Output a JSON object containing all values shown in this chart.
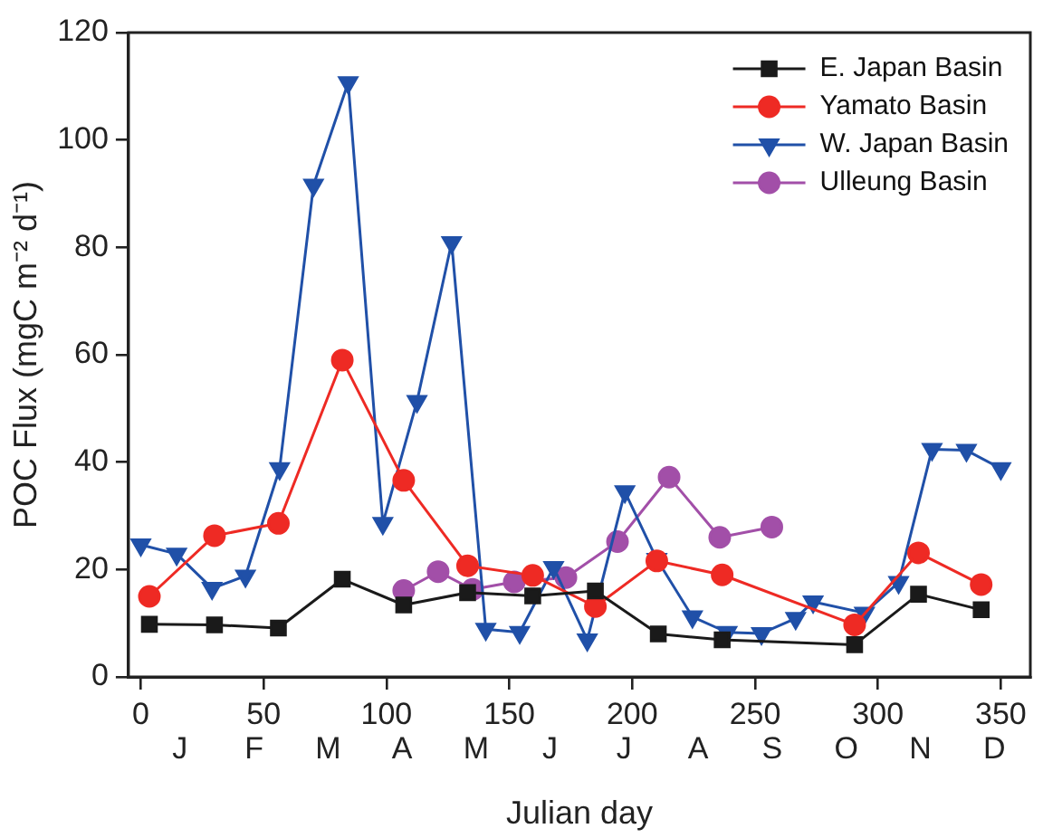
{
  "chart_data": {
    "type": "line",
    "xlabel": "Julian day",
    "ylabel": "POC Flux (mgC m⁻² d⁻¹)",
    "xlim": [
      -5,
      362
    ],
    "xticks": [
      0,
      50,
      100,
      150,
      200,
      250,
      300,
      350
    ],
    "annotations": [
      "J",
      "F",
      "M",
      "A",
      "M",
      "J",
      "J",
      "A",
      "S",
      "O",
      "N",
      "D"
    ],
    "ylim": [
      0,
      120
    ],
    "yticks": [
      0,
      20,
      40,
      60,
      80,
      100,
      120
    ],
    "grid": false,
    "legend": "top right",
    "line_style": "solid",
    "series": [
      {
        "name": "E. Japan Basin",
        "color": "#1a1a1a",
        "marker": "square",
        "x": [
          3.5,
          30,
          56,
          82,
          107,
          133,
          159.5,
          185,
          210.6,
          236.6,
          290.5,
          316.5,
          342
        ],
        "values": [
          9.8,
          9.7,
          9.1,
          18.2,
          13.4,
          15.7,
          15.1,
          16,
          8,
          6.9,
          6,
          15.4,
          12.5
        ]
      },
      {
        "name": "Yamato Basin",
        "color": "#ee2a24",
        "marker": "circle",
        "x": [
          3.5,
          30,
          56,
          82,
          107,
          133,
          159.5,
          185,
          210,
          236.6,
          290.5,
          316.5,
          342
        ],
        "values": [
          15,
          26.3,
          28.6,
          59,
          36.6,
          20.7,
          18.9,
          13.1,
          21.6,
          19,
          9.7,
          23.1,
          17.2
        ]
      },
      {
        "name": "W. Japan Basin",
        "color": "#2050a8",
        "marker": "triangle",
        "x": [
          0,
          14.6,
          29,
          42.6,
          56.5,
          70.3,
          84.4,
          98.5,
          112.4,
          126.5,
          140.4,
          154.2,
          168,
          181.7,
          197,
          210,
          224.5,
          238.6,
          252.6,
          266.5,
          273.6,
          294.5,
          308.4,
          322,
          336,
          350
        ],
        "values": [
          24.6,
          22.9,
          16.5,
          18.8,
          38.8,
          91.6,
          110.7,
          28.6,
          51.3,
          80.9,
          8.9,
          8.3,
          20.4,
          6.9,
          34.5,
          21.9,
          11.2,
          8.3,
          8.1,
          10.9,
          14,
          11.9,
          17.6,
          42.4,
          42.2,
          38.8
        ]
      },
      {
        "name": "Ulleung Basin",
        "color": "#a24fa8",
        "marker": "circle",
        "x": [
          107,
          121,
          135,
          152,
          173,
          194,
          215,
          235.6,
          256.8
        ],
        "values": [
          16.1,
          19.6,
          16.3,
          17.7,
          18.5,
          25.2,
          37.2,
          26,
          27.9
        ]
      }
    ]
  }
}
